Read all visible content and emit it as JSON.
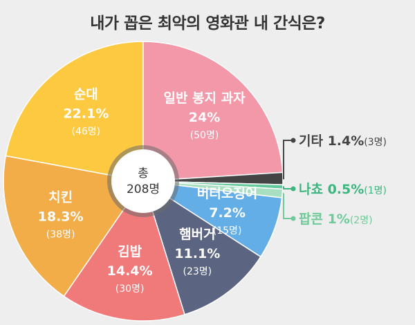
{
  "title": "내가 꼽은 최악의 영화관 내 간식은?",
  "center": {
    "line1": "총",
    "line2": "208명"
  },
  "chart_data": {
    "type": "pie",
    "title": "내가 꼽은 최악의 영화관 내 간식은?",
    "total": "208명",
    "slices": [
      {
        "name": "일반 봉지 과자",
        "percent": 24,
        "percent_label": "24%",
        "count": 50,
        "count_label": "(50명)",
        "color": "#f298a8"
      },
      {
        "name": "기타",
        "percent": 1.4,
        "percent_label": "1.4%",
        "count": 3,
        "count_label": "(3명)",
        "color": "#444444"
      },
      {
        "name": "나쵸",
        "percent": 0.5,
        "percent_label": "0.5%",
        "count": 1,
        "count_label": "(1명)",
        "color": "#63c99a"
      },
      {
        "name": "팝콘",
        "percent": 1,
        "percent_label": "1%",
        "count": 2,
        "count_label": "(2명)",
        "color": "#a9dfc1"
      },
      {
        "name": "버터오징어",
        "percent": 7.2,
        "percent_label": "7.2%",
        "count": 15,
        "count_label": "(15명)",
        "color": "#64aee8"
      },
      {
        "name": "햄버거",
        "percent": 11.1,
        "percent_label": "11.1%",
        "count": 23,
        "count_label": "(23명)",
        "color": "#5b6480"
      },
      {
        "name": "김밥",
        "percent": 14.4,
        "percent_label": "14.4%",
        "count": 30,
        "count_label": "(30명)",
        "color": "#f0797a"
      },
      {
        "name": "치킨",
        "percent": 18.3,
        "percent_label": "18.3%",
        "count": 38,
        "count_label": "(38명)",
        "color": "#f2ac48"
      },
      {
        "name": "순대",
        "percent": 22.1,
        "percent_label": "22.1%",
        "count": 46,
        "count_label": "(46명)",
        "color": "#fcc940"
      }
    ]
  }
}
